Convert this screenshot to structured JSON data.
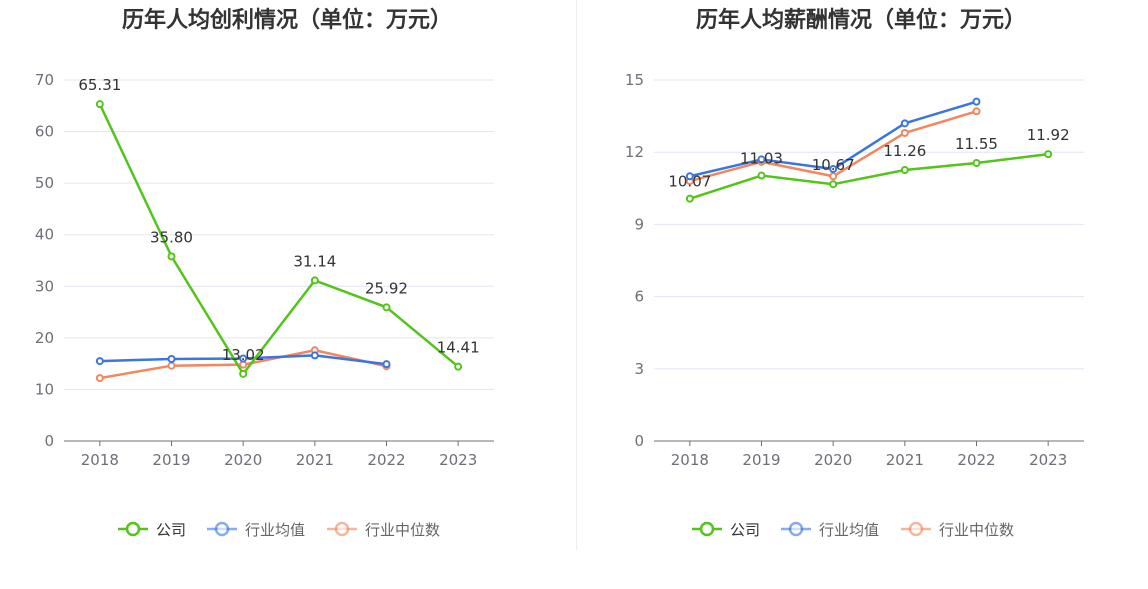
{
  "colors": {
    "company": "#52c41a",
    "industry_avg": "#3a76e0",
    "industry_median": "#f2865e",
    "grid": "#e0e6f1",
    "axis": "#6e7079"
  },
  "legend": {
    "company": "公司",
    "industry_avg": "行业均值",
    "industry_median": "行业中位数"
  },
  "chart_data": [
    {
      "type": "line",
      "title": "历年人均创利情况（单位：万元）",
      "categories": [
        "2018",
        "2019",
        "2020",
        "2021",
        "2022",
        "2023"
      ],
      "ylim": [
        0,
        70
      ],
      "yticks": [
        0,
        10,
        20,
        30,
        40,
        50,
        60,
        70
      ],
      "grid": true,
      "legend_position": "bottom",
      "series": [
        {
          "name": "公司",
          "values": [
            65.31,
            35.8,
            13.02,
            31.14,
            25.92,
            14.41
          ],
          "labels": [
            "65.31",
            "35.80",
            "13.02",
            "31.14",
            "25.92",
            "14.41"
          ]
        },
        {
          "name": "行业均值",
          "values": [
            15.5,
            15.9,
            16.0,
            16.6,
            14.9,
            null
          ]
        },
        {
          "name": "行业中位数",
          "values": [
            12.2,
            14.6,
            14.8,
            17.6,
            14.5,
            null
          ]
        }
      ]
    },
    {
      "type": "line",
      "title": "历年人均薪酬情况（单位：万元）",
      "categories": [
        "2018",
        "2019",
        "2020",
        "2021",
        "2022",
        "2023"
      ],
      "ylim": [
        0,
        15
      ],
      "yticks": [
        0,
        3,
        6,
        9,
        12,
        15
      ],
      "grid": true,
      "legend_position": "bottom",
      "series": [
        {
          "name": "公司",
          "values": [
            10.07,
            11.03,
            10.67,
            11.26,
            11.55,
            11.92
          ],
          "labels": [
            "10.07",
            "11.03",
            "10.67",
            "11.26",
            "11.55",
            "11.92"
          ]
        },
        {
          "name": "行业均值",
          "values": [
            11.0,
            11.7,
            11.3,
            13.2,
            14.1,
            null
          ]
        },
        {
          "name": "行业中位数",
          "values": [
            10.8,
            11.6,
            11.0,
            12.8,
            13.7,
            null
          ]
        }
      ]
    }
  ]
}
